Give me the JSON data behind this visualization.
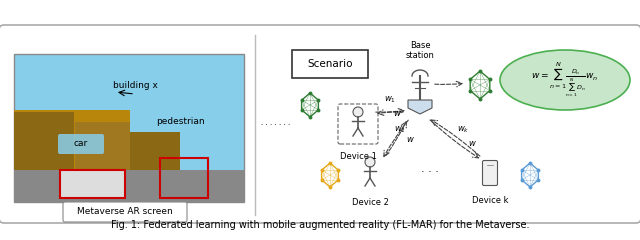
{
  "fig_caption": "Fig. 1: Federated learning with mobile augmented reality (FL-MAR) for the Metaverse.",
  "bg_color": "#ffffff",
  "border_color": "#cccccc",
  "left_panel": {
    "photo_bounds": [
      0.02,
      0.12,
      0.38,
      0.82
    ],
    "caption": "Metaverse AR screen",
    "label_building": "building x",
    "label_car": "car",
    "label_pedestrian": "pedestrian"
  },
  "right_panel": {
    "scenario_box": "Scenario",
    "base_station_label": "Base\nstation",
    "device1_label": "Device 1",
    "device2_label": "Device 2",
    "devicek_label": "Device k",
    "formula": "$w = \\sum_{n=1}^{N} \\frac{D_n}{\\sum_{n=1}^{N} D_n} w_n$",
    "ellipse_color": "#c8e6c9",
    "dots": "..."
  },
  "colors": {
    "green_network": "#4caf50",
    "yellow_network": "#ffc107",
    "blue_network": "#2196f3",
    "arrow_color": "#555555",
    "label_bg": "#87ceeb",
    "car_box": "#ff0000",
    "pedestrian_box": "#ff0000",
    "scenario_box_bg": "#ffffff",
    "scenario_box_border": "#333333"
  },
  "figsize": [
    6.4,
    2.4
  ],
  "dpi": 100
}
